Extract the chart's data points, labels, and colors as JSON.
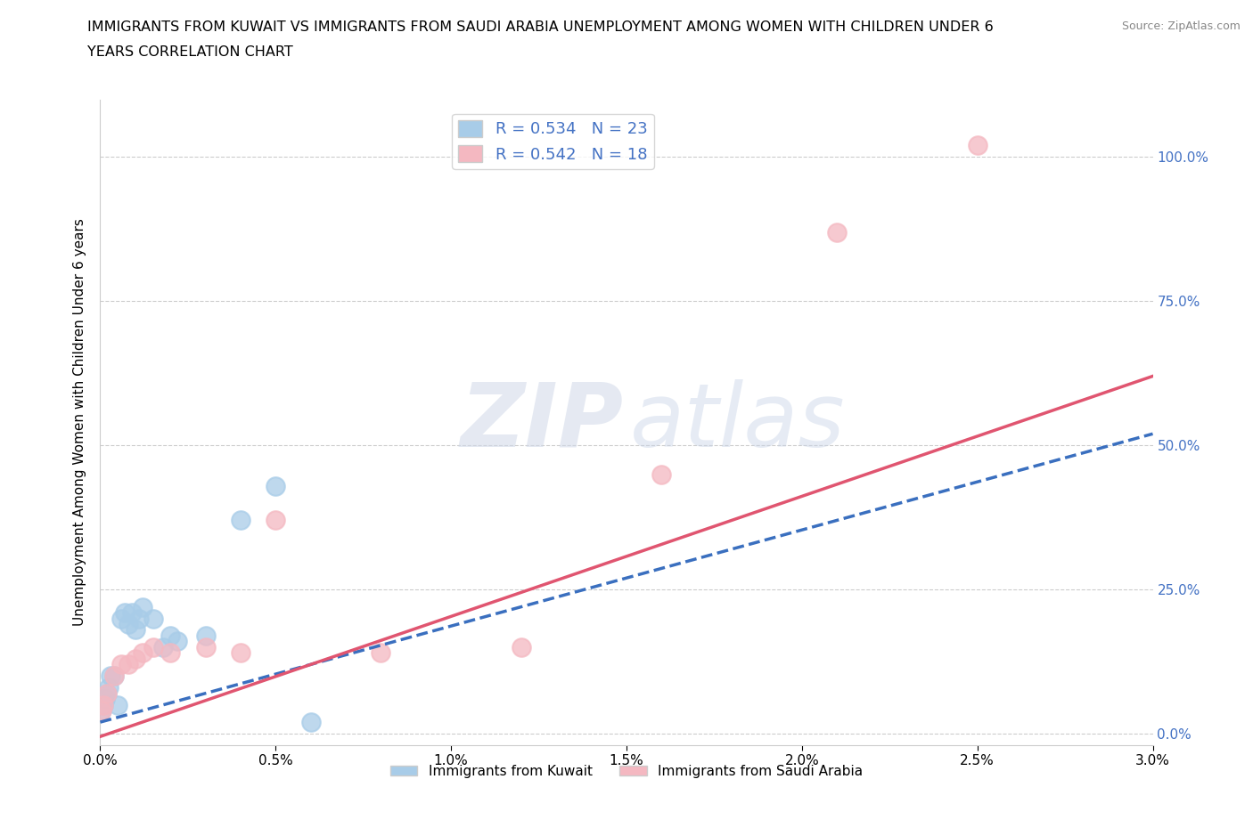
{
  "title_line1": "IMMIGRANTS FROM KUWAIT VS IMMIGRANTS FROM SAUDI ARABIA UNEMPLOYMENT AMONG WOMEN WITH CHILDREN UNDER 6",
  "title_line2": "YEARS CORRELATION CHART",
  "source": "Source: ZipAtlas.com",
  "ylabel": "Unemployment Among Women with Children Under 6 years",
  "xlim": [
    0.0,
    0.03
  ],
  "ylim": [
    -0.02,
    1.1
  ],
  "xticks": [
    0.0,
    0.005,
    0.01,
    0.015,
    0.02,
    0.025,
    0.03
  ],
  "xticklabels": [
    "0.0%",
    "0.5%",
    "1.0%",
    "1.5%",
    "2.0%",
    "2.5%",
    "3.0%"
  ],
  "yticks_right": [
    0.0,
    0.25,
    0.5,
    0.75,
    1.0
  ],
  "yticklabels_right": [
    "0.0%",
    "25.0%",
    "50.0%",
    "75.0%",
    "100.0%"
  ],
  "kuwait_color": "#a8cce8",
  "kuwait_edge_color": "#a8cce8",
  "saudi_color": "#f4b8c1",
  "saudi_edge_color": "#f4b8c1",
  "kuwait_line_color": "#3a6fbf",
  "saudi_line_color": "#e05570",
  "kuwait_R": 0.534,
  "kuwait_N": 23,
  "saudi_R": 0.542,
  "saudi_N": 18,
  "kuwait_line_x0": 0.0,
  "kuwait_line_y0": 0.02,
  "kuwait_line_x1": 0.03,
  "kuwait_line_y1": 0.52,
  "saudi_line_x0": 0.0,
  "saudi_line_y0": -0.005,
  "saudi_line_x1": 0.03,
  "saudi_line_y1": 0.62,
  "kuwait_x": [
    5e-05,
    0.0001,
    0.00015,
    0.0002,
    0.00025,
    0.0003,
    0.0004,
    0.0005,
    0.0006,
    0.0007,
    0.0008,
    0.0009,
    0.001,
    0.0011,
    0.0012,
    0.0015,
    0.0018,
    0.002,
    0.0022,
    0.003,
    0.004,
    0.005,
    0.006
  ],
  "kuwait_y": [
    0.04,
    0.05,
    0.06,
    0.07,
    0.08,
    0.1,
    0.1,
    0.05,
    0.2,
    0.21,
    0.19,
    0.21,
    0.18,
    0.2,
    0.22,
    0.2,
    0.15,
    0.17,
    0.16,
    0.17,
    0.37,
    0.43,
    0.02
  ],
  "saudi_x": [
    5e-05,
    0.0001,
    0.0002,
    0.0004,
    0.0006,
    0.0008,
    0.001,
    0.0012,
    0.0015,
    0.002,
    0.003,
    0.004,
    0.005,
    0.008,
    0.012,
    0.016,
    0.021,
    0.025
  ],
  "saudi_y": [
    0.04,
    0.05,
    0.07,
    0.1,
    0.12,
    0.12,
    0.13,
    0.14,
    0.15,
    0.14,
    0.15,
    0.14,
    0.37,
    0.14,
    0.15,
    0.45,
    0.87,
    1.02
  ],
  "watermark_zip": "ZIP",
  "watermark_atlas": "atlas",
  "background_color": "#ffffff",
  "legend_kuwait": "Immigrants from Kuwait",
  "legend_saudi": "Immigrants from Saudi Arabia",
  "right_axis_color": "#4472c4",
  "grid_color": "#cccccc"
}
